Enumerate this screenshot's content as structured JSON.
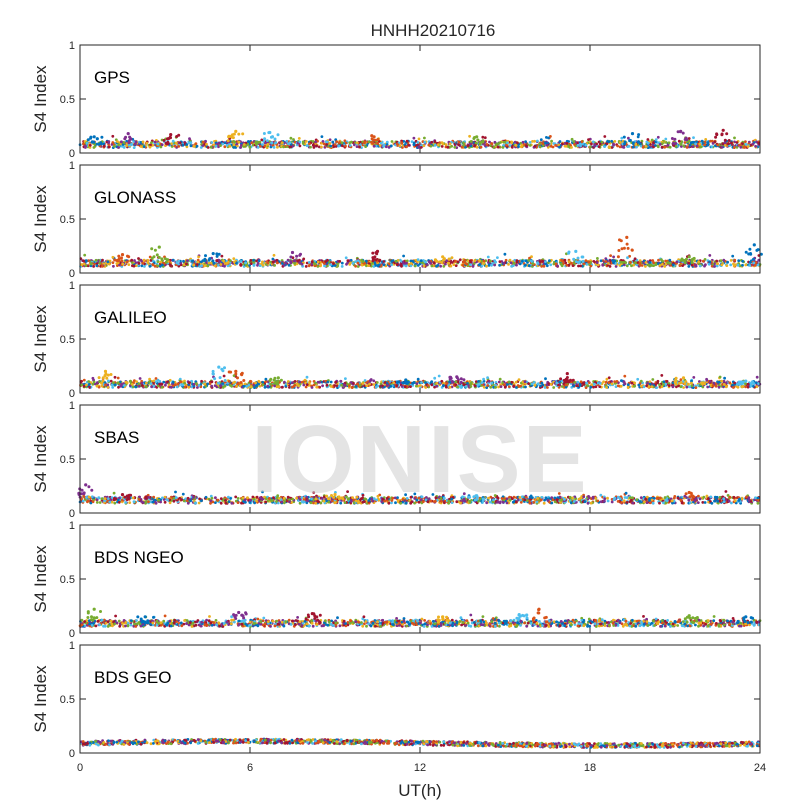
{
  "watermark": "IONISE",
  "chart_data": {
    "type": "scatter",
    "title": "HNHH20210716",
    "xlabel": "UT(h)",
    "ylabel": "S4 Index",
    "xlim": [
      0,
      24
    ],
    "ylim": [
      0,
      1
    ],
    "xticks": [
      "0",
      "6",
      "12",
      "18",
      "24"
    ],
    "yticks": [
      "0",
      "0.5",
      "1"
    ],
    "grid": false,
    "series_colors": [
      "#0072BD",
      "#D95319",
      "#EDB120",
      "#7E2F8E",
      "#77AC30",
      "#4DBEEE",
      "#A2142F"
    ],
    "panels": [
      {
        "label": "GPS",
        "base_s4": 0.08,
        "peaks": [
          {
            "x": 0.5,
            "y": 0.15
          },
          {
            "x": 1.7,
            "y": 0.18
          },
          {
            "x": 3.2,
            "y": 0.17
          },
          {
            "x": 5.5,
            "y": 0.2
          },
          {
            "x": 6.7,
            "y": 0.19
          },
          {
            "x": 10.3,
            "y": 0.16
          },
          {
            "x": 14.0,
            "y": 0.15
          },
          {
            "x": 19.5,
            "y": 0.18
          },
          {
            "x": 21.2,
            "y": 0.2
          },
          {
            "x": 22.7,
            "y": 0.21
          }
        ]
      },
      {
        "label": "GLONASS",
        "base_s4": 0.09,
        "peaks": [
          {
            "x": 1.5,
            "y": 0.17
          },
          {
            "x": 2.8,
            "y": 0.24
          },
          {
            "x": 4.7,
            "y": 0.18
          },
          {
            "x": 7.5,
            "y": 0.19
          },
          {
            "x": 10.5,
            "y": 0.2
          },
          {
            "x": 12.8,
            "y": 0.15
          },
          {
            "x": 17.5,
            "y": 0.2
          },
          {
            "x": 19.3,
            "y": 0.33
          },
          {
            "x": 21.5,
            "y": 0.15
          },
          {
            "x": 23.8,
            "y": 0.26
          }
        ]
      },
      {
        "label": "GALILEO",
        "base_s4": 0.08,
        "peaks": [
          {
            "x": 0.9,
            "y": 0.2
          },
          {
            "x": 4.9,
            "y": 0.24
          },
          {
            "x": 5.5,
            "y": 0.2
          },
          {
            "x": 7.0,
            "y": 0.14
          },
          {
            "x": 11.5,
            "y": 0.12
          },
          {
            "x": 13.3,
            "y": 0.15
          },
          {
            "x": 17.2,
            "y": 0.18
          },
          {
            "x": 21.3,
            "y": 0.14
          },
          {
            "x": 23.5,
            "y": 0.11
          }
        ]
      },
      {
        "label": "SBAS",
        "base_s4": 0.12,
        "peaks": [
          {
            "x": 0.2,
            "y": 0.26
          },
          {
            "x": 1.5,
            "y": 0.17
          },
          {
            "x": 9.0,
            "y": 0.17
          },
          {
            "x": 14.0,
            "y": 0.16
          },
          {
            "x": 21.5,
            "y": 0.19
          }
        ]
      },
      {
        "label": "BDS NGEO",
        "base_s4": 0.09,
        "peaks": [
          {
            "x": 0.5,
            "y": 0.22
          },
          {
            "x": 2.3,
            "y": 0.15
          },
          {
            "x": 5.6,
            "y": 0.19
          },
          {
            "x": 8.2,
            "y": 0.18
          },
          {
            "x": 12.8,
            "y": 0.15
          },
          {
            "x": 15.5,
            "y": 0.17
          },
          {
            "x": 16.2,
            "y": 0.22
          },
          {
            "x": 21.5,
            "y": 0.16
          },
          {
            "x": 23.5,
            "y": 0.15
          }
        ]
      },
      {
        "label": "BDS GEO",
        "base_s4": 0.09,
        "peaks": []
      }
    ]
  }
}
